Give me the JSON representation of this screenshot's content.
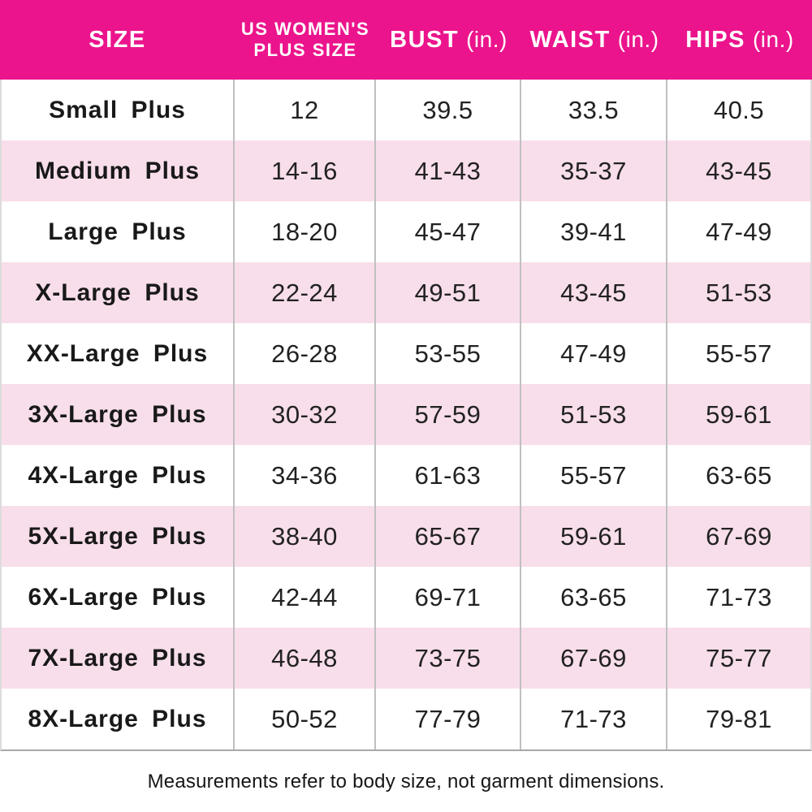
{
  "header": {
    "col_size": "SIZE",
    "col_us_line1": "US WOMEN'S",
    "col_us_line2": "PLUS SIZE",
    "col_bust_main": "BUST",
    "col_bust_unit": "(in.)",
    "col_waist_main": "WAIST",
    "col_waist_unit": "(in.)",
    "col_hips_main": "HIPS",
    "col_hips_unit": "(in.)"
  },
  "footer": {
    "note": "Measurements refer to body size, not garment dimensions."
  },
  "colors": {
    "header_bg": "#EB148C",
    "row_alt_bg": "#F8DEEA",
    "grid_line": "#C0C0C0",
    "header_text": "#FFFFFF",
    "body_text": "#222222"
  },
  "chart_data": {
    "type": "table",
    "title": "Women's plus size chart",
    "columns": [
      "SIZE",
      "US WOMEN'S PLUS SIZE",
      "BUST (in.)",
      "WAIST (in.)",
      "HIPS (in.)"
    ],
    "rows": [
      [
        "Small Plus",
        "12",
        "39.5",
        "33.5",
        "40.5"
      ],
      [
        "Medium Plus",
        "14-16",
        "41-43",
        "35-37",
        "43-45"
      ],
      [
        "Large Plus",
        "18-20",
        "45-47",
        "39-41",
        "47-49"
      ],
      [
        "X-Large Plus",
        "22-24",
        "49-51",
        "43-45",
        "51-53"
      ],
      [
        "XX-Large Plus",
        "26-28",
        "53-55",
        "47-49",
        "55-57"
      ],
      [
        "3X-Large Plus",
        "30-32",
        "57-59",
        "51-53",
        "59-61"
      ],
      [
        "4X-Large Plus",
        "34-36",
        "61-63",
        "55-57",
        "63-65"
      ],
      [
        "5X-Large Plus",
        "38-40",
        "65-67",
        "59-61",
        "67-69"
      ],
      [
        "6X-Large Plus",
        "42-44",
        "69-71",
        "63-65",
        "71-73"
      ],
      [
        "7X-Large Plus",
        "46-48",
        "73-75",
        "67-69",
        "75-77"
      ],
      [
        "8X-Large Plus",
        "50-52",
        "77-79",
        "71-73",
        "79-81"
      ]
    ],
    "footnote": "Measurements refer to body size, not garment dimensions.",
    "layout_hints": {
      "alternating_row_stripes": true,
      "stripe_pattern": "odd rows white, even rows light pink",
      "column_dividers": "vertical gray lines in body only"
    }
  }
}
